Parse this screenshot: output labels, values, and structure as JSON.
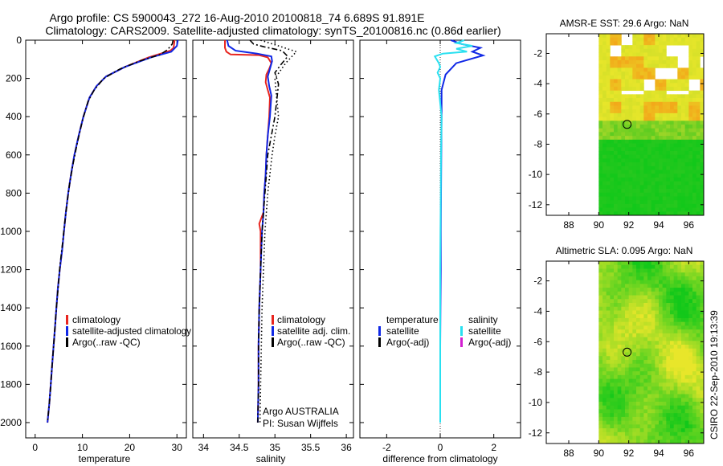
{
  "title": {
    "line1": "Argo profile: CS 5900043_272 16-Aug-2010 20100818_74 6.689S 91.891E",
    "line2": "Climatology: CARS2009. Satellite-adjusted climatology: synTS_20100816.nc (0.86d earlier)"
  },
  "side_label": "CSIRO 22-Sep-2010 19:13:39",
  "colors": {
    "climatology": "#e8251f",
    "satellite": "#1028e6",
    "argo": "#000000",
    "satellite_salinity": "#29e0f0",
    "argo_adj_salinity": "#d21fd0",
    "map_green": "#12c81a",
    "map_yellow": "#e8e62a",
    "map_orange": "#f2a81a"
  },
  "chart_data": [
    {
      "id": "temperature",
      "type": "line",
      "xlabel": "temperature",
      "ylabel": "depth",
      "xlim": [
        -2,
        32
      ],
      "ylim": [
        0,
        2080
      ],
      "y_reversed": true,
      "xticks": [
        0,
        10,
        20,
        30
      ],
      "yticks": [
        0,
        200,
        400,
        600,
        800,
        1000,
        1200,
        1400,
        1600,
        1800,
        2000
      ],
      "legend": {
        "position": "lower-right",
        "entries": [
          {
            "label": "climatology",
            "color_key": "climatology"
          },
          {
            "label": "satellite-adjusted climatology",
            "color_key": "satellite"
          },
          {
            "label": "Argo(..raw -QC)",
            "color_key": "argo"
          }
        ]
      },
      "series": [
        {
          "name": "climatology",
          "color_key": "climatology",
          "style": "solid",
          "points": [
            [
              29.5,
              0
            ],
            [
              29.3,
              40
            ],
            [
              28.6,
              55
            ],
            [
              24,
              90
            ],
            [
              19,
              140
            ],
            [
              15,
              190
            ],
            [
              13,
              240
            ],
            [
              11.5,
              300
            ],
            [
              10.2,
              400
            ],
            [
              9.2,
              500
            ],
            [
              8.3,
              600
            ],
            [
              7.6,
              700
            ],
            [
              7.0,
              800
            ],
            [
              6.5,
              900
            ],
            [
              6.1,
              1000
            ],
            [
              5.7,
              1100
            ],
            [
              5.2,
              1200
            ],
            [
              4.8,
              1300
            ],
            [
              4.5,
              1400
            ],
            [
              4.2,
              1500
            ],
            [
              3.9,
              1600
            ],
            [
              3.6,
              1700
            ],
            [
              3.3,
              1800
            ],
            [
              3.0,
              1900
            ],
            [
              2.6,
              2000
            ]
          ]
        },
        {
          "name": "satellite-adjusted climatology",
          "color_key": "satellite",
          "style": "solid",
          "points": [
            [
              30.2,
              0
            ],
            [
              30.0,
              30
            ],
            [
              28.8,
              60
            ],
            [
              24.5,
              90
            ],
            [
              19,
              140
            ],
            [
              15,
              190
            ],
            [
              13,
              240
            ],
            [
              11.5,
              300
            ],
            [
              10.2,
              400
            ],
            [
              9.2,
              500
            ],
            [
              8.3,
              600
            ],
            [
              7.6,
              700
            ],
            [
              7.0,
              800
            ],
            [
              6.5,
              900
            ],
            [
              6.1,
              1000
            ],
            [
              5.7,
              1100
            ],
            [
              5.2,
              1200
            ],
            [
              4.8,
              1300
            ],
            [
              4.5,
              1400
            ],
            [
              4.2,
              1500
            ],
            [
              3.9,
              1600
            ],
            [
              3.6,
              1700
            ],
            [
              3.3,
              1800
            ],
            [
              3.0,
              1900
            ],
            [
              2.6,
              2000
            ]
          ]
        },
        {
          "name": "Argo(..raw -QC)",
          "color_key": "argo",
          "style": "dashdot",
          "points": [
            [
              29.2,
              0
            ],
            [
              29.0,
              20
            ],
            [
              28.0,
              50
            ],
            [
              26.5,
              75
            ],
            [
              22,
              110
            ],
            [
              18,
              150
            ],
            [
              14.5,
              200
            ],
            [
              12.5,
              260
            ],
            [
              11.2,
              320
            ],
            [
              10.0,
              420
            ],
            [
              8.9,
              540
            ],
            [
              8.0,
              650
            ],
            [
              7.3,
              750
            ],
            [
              6.7,
              860
            ],
            [
              6.2,
              970
            ],
            [
              5.8,
              1060
            ],
            [
              5.3,
              1170
            ],
            [
              4.9,
              1280
            ],
            [
              4.5,
              1400
            ],
            [
              4.2,
              1500
            ],
            [
              3.9,
              1600
            ],
            [
              3.6,
              1700
            ],
            [
              3.3,
              1800
            ],
            [
              3.0,
              1900
            ],
            [
              2.6,
              2000
            ]
          ]
        }
      ]
    },
    {
      "id": "salinity",
      "type": "line",
      "xlabel": "salinity",
      "xlim": [
        33.85,
        36.1
      ],
      "ylim": [
        0,
        2080
      ],
      "y_reversed": true,
      "xticks": [
        34,
        34.5,
        35,
        35.5,
        36
      ],
      "legend": {
        "position": "lower-right",
        "entries": [
          {
            "label": "climatology",
            "color_key": "climatology"
          },
          {
            "label": "satellite adj. clim.",
            "color_key": "satellite"
          },
          {
            "label": "Argo(..raw -QC)",
            "color_key": "argo"
          }
        ]
      },
      "annotations": [
        "Argo AUSTRALIA",
        "PI: Susan Wijffels"
      ],
      "series": [
        {
          "name": "climatology",
          "color_key": "climatology",
          "style": "solid",
          "points": [
            [
              34.3,
              0
            ],
            [
              34.3,
              40
            ],
            [
              34.32,
              60
            ],
            [
              34.38,
              75
            ],
            [
              34.78,
              78
            ],
            [
              34.9,
              90
            ],
            [
              34.95,
              120
            ],
            [
              34.92,
              150
            ],
            [
              34.88,
              180
            ],
            [
              34.87,
              220
            ],
            [
              34.9,
              260
            ],
            [
              34.93,
              300
            ],
            [
              34.92,
              400
            ],
            [
              34.9,
              500
            ],
            [
              34.88,
              600
            ],
            [
              34.87,
              700
            ],
            [
              34.85,
              800
            ],
            [
              34.84,
              900
            ],
            [
              34.78,
              960
            ],
            [
              34.8,
              1000
            ],
            [
              34.8,
              1200
            ],
            [
              34.78,
              1400
            ],
            [
              34.77,
              1600
            ],
            [
              34.77,
              1800
            ],
            [
              34.76,
              2000
            ]
          ]
        },
        {
          "name": "satellite adj. clim.",
          "color_key": "satellite",
          "style": "solid",
          "points": [
            [
              34.33,
              0
            ],
            [
              34.35,
              30
            ],
            [
              34.45,
              55
            ],
            [
              34.75,
              70
            ],
            [
              34.95,
              85
            ],
            [
              34.96,
              110
            ],
            [
              34.93,
              150
            ],
            [
              34.9,
              190
            ],
            [
              34.92,
              240
            ],
            [
              34.95,
              290
            ],
            [
              34.93,
              400
            ],
            [
              34.9,
              500
            ],
            [
              34.88,
              600
            ],
            [
              34.87,
              700
            ],
            [
              34.85,
              800
            ],
            [
              34.84,
              900
            ],
            [
              34.82,
              1000
            ],
            [
              34.8,
              1200
            ],
            [
              34.78,
              1400
            ],
            [
              34.77,
              1600
            ],
            [
              34.77,
              1800
            ],
            [
              34.76,
              2000
            ]
          ]
        },
        {
          "name": "Argo(..raw -QC)",
          "color_key": "argo",
          "style": "dashdot",
          "points": [
            [
              34.65,
              0
            ],
            [
              34.7,
              20
            ],
            [
              34.85,
              35
            ],
            [
              35.1,
              55
            ],
            [
              35.18,
              85
            ],
            [
              35.08,
              130
            ],
            [
              35.0,
              170
            ],
            [
              35.05,
              230
            ],
            [
              35.03,
              300
            ],
            [
              35.0,
              400
            ],
            [
              34.95,
              500
            ],
            [
              34.9,
              600
            ],
            [
              34.88,
              700
            ],
            [
              34.86,
              800
            ],
            [
              34.84,
              900
            ],
            [
              34.82,
              1000
            ],
            [
              34.8,
              1200
            ],
            [
              34.78,
              1400
            ],
            [
              34.77,
              1600
            ],
            [
              34.77,
              1800
            ],
            [
              34.76,
              2000
            ]
          ]
        },
        {
          "name": "Argo dotted",
          "color_key": "argo",
          "style": "dotted",
          "points": [
            [
              34.8,
              0
            ],
            [
              35.05,
              30
            ],
            [
              35.3,
              60
            ],
            [
              35.15,
              120
            ],
            [
              35.0,
              200
            ],
            [
              35.02,
              280
            ],
            [
              35.05,
              400
            ],
            [
              35.0,
              500
            ],
            [
              34.96,
              600
            ],
            [
              34.93,
              700
            ],
            [
              34.9,
              800
            ],
            [
              34.88,
              900
            ],
            [
              34.86,
              1000
            ],
            [
              34.84,
              1200
            ],
            [
              34.82,
              1400
            ],
            [
              34.81,
              1600
            ],
            [
              34.8,
              1800
            ],
            [
              34.79,
              2000
            ]
          ]
        }
      ]
    },
    {
      "id": "difference",
      "type": "line",
      "xlabel": "difference from climatology",
      "xlim": [
        -3,
        3
      ],
      "ylim": [
        0,
        2080
      ],
      "y_reversed": true,
      "xticks": [
        -2,
        0,
        2
      ],
      "legend": {
        "position": "lower-center",
        "column_titles": [
          "temperature",
          "salinity"
        ],
        "entries": [
          {
            "label": "satellite",
            "color_key": "satellite",
            "column": 0
          },
          {
            "label": "Argo(-adj)",
            "color_key": "argo",
            "column": 0
          },
          {
            "label": "satellite",
            "color_key": "satellite_salinity",
            "column": 1
          },
          {
            "label": "Argo(-adj)",
            "color_key": "argo_adj_salinity",
            "column": 1
          }
        ]
      },
      "series": [
        {
          "name": "temperature satellite",
          "color_key": "satellite",
          "style": "solid",
          "points": [
            [
              0.4,
              0
            ],
            [
              0.8,
              20
            ],
            [
              1.5,
              40
            ],
            [
              1.2,
              60
            ],
            [
              1.6,
              80
            ],
            [
              0.6,
              120
            ],
            [
              0.2,
              180
            ],
            [
              0.05,
              260
            ],
            [
              0.05,
              400
            ],
            [
              0.04,
              600
            ],
            [
              0.03,
              800
            ],
            [
              0.02,
              1000
            ],
            [
              0.02,
              1200
            ],
            [
              0.01,
              1400
            ],
            [
              0.0,
              1600
            ],
            [
              0.0,
              1800
            ],
            [
              0.0,
              2000
            ]
          ]
        },
        {
          "name": "salinity satellite",
          "color_key": "satellite_salinity",
          "style": "solid",
          "points": [
            [
              0.9,
              0
            ],
            [
              0.6,
              15
            ],
            [
              1.2,
              30
            ],
            [
              0.6,
              45
            ],
            [
              1.0,
              60
            ],
            [
              0.1,
              70
            ],
            [
              -0.2,
              85
            ],
            [
              -0.05,
              120
            ],
            [
              0.0,
              140
            ],
            [
              -0.1,
              170
            ],
            [
              0.0,
              200
            ],
            [
              -0.05,
              260
            ],
            [
              0.05,
              400
            ],
            [
              0.03,
              600
            ],
            [
              0.02,
              800
            ],
            [
              0.01,
              1000
            ],
            [
              0.0,
              1200
            ],
            [
              0.0,
              1500
            ],
            [
              0.0,
              2000
            ]
          ]
        }
      ]
    }
  ],
  "maps": [
    {
      "id": "sst",
      "title": "AMSR-E SST: 29.6 Argo: NaN",
      "xticks": [
        88,
        90,
        92,
        94,
        96
      ],
      "yticks": [
        -2,
        -4,
        -6,
        -8,
        -10,
        -12
      ],
      "xlim": [
        86.5,
        97
      ],
      "ylim": [
        -12.7,
        -0.7
      ],
      "data_lon_range": [
        90,
        97
      ],
      "marker": {
        "lon": 91.891,
        "lat": -6.689
      }
    },
    {
      "id": "sla",
      "title": "Altimetric SLA: 0.095 Argo: NaN",
      "xticks": [
        88,
        90,
        92,
        94,
        96
      ],
      "yticks": [
        -2,
        -4,
        -6,
        -8,
        -10,
        -12
      ],
      "xlim": [
        86.5,
        97
      ],
      "ylim": [
        -12.7,
        -0.7
      ],
      "data_lon_range": [
        90,
        97
      ],
      "marker": {
        "lon": 91.891,
        "lat": -6.689
      }
    }
  ]
}
